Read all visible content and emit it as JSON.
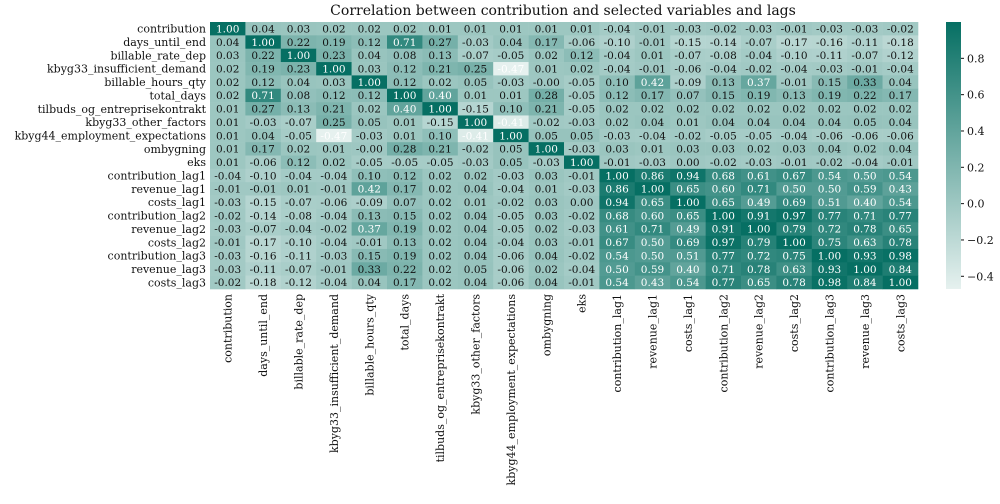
{
  "chart_data": {
    "type": "heatmap",
    "title": "Correlation between contribution and selected variables and lags",
    "rows": [
      "contribution",
      "days_until_end",
      "billable_rate_dep",
      "kbyg33_insufficient_demand",
      "billable_hours_qty",
      "total_days",
      "tilbuds_og_entreprisekontrakt",
      "kbyg33_other_factors",
      "kbyg44_employment_expectations",
      "ombygning",
      "eks",
      "contribution_lag1",
      "revenue_lag1",
      "costs_lag1",
      "contribution_lag2",
      "revenue_lag2",
      "costs_lag2",
      "contribution_lag3",
      "revenue_lag3",
      "costs_lag3"
    ],
    "columns": [
      "contribution",
      "days_until_end",
      "billable_rate_dep",
      "kbyg33_insufficient_demand",
      "billable_hours_qty",
      "total_days",
      "tilbuds_og_entreprisekontrakt",
      "kbyg33_other_factors",
      "kbyg44_employment_expectations",
      "ombygning",
      "eks",
      "contribution_lag1",
      "revenue_lag1",
      "costs_lag1",
      "contribution_lag2",
      "revenue_lag2",
      "costs_lag2",
      "contribution_lag3",
      "revenue_lag3",
      "costs_lag3"
    ],
    "values": [
      [
        "1.00",
        "0.04",
        "0.03",
        "0.02",
        "0.02",
        "0.02",
        "0.01",
        "0.01",
        "0.01",
        "0.01",
        "0.01",
        "-0.04",
        "-0.01",
        "-0.03",
        "-0.02",
        "-0.03",
        "-0.01",
        "-0.03",
        "-0.03",
        "-0.02"
      ],
      [
        "0.04",
        "1.00",
        "0.22",
        "0.19",
        "0.12",
        "0.71",
        "0.27",
        "-0.03",
        "0.04",
        "0.17",
        "-0.06",
        "-0.10",
        "-0.01",
        "-0.15",
        "-0.14",
        "-0.07",
        "-0.17",
        "-0.16",
        "-0.11",
        "-0.18"
      ],
      [
        "0.03",
        "0.22",
        "1.00",
        "0.23",
        "0.04",
        "0.08",
        "0.13",
        "-0.07",
        "-0.05",
        "0.02",
        "0.12",
        "-0.04",
        "0.01",
        "-0.07",
        "-0.08",
        "-0.04",
        "-0.10",
        "-0.11",
        "-0.07",
        "-0.12"
      ],
      [
        "0.02",
        "0.19",
        "0.23",
        "1.00",
        "0.03",
        "0.12",
        "0.21",
        "0.25",
        "-0.47",
        "0.01",
        "0.02",
        "-0.04",
        "-0.01",
        "-0.06",
        "-0.04",
        "-0.02",
        "-0.04",
        "-0.03",
        "-0.01",
        "-0.04"
      ],
      [
        "0.02",
        "0.12",
        "0.04",
        "0.03",
        "1.00",
        "0.12",
        "0.02",
        "0.05",
        "-0.03",
        "-0.00",
        "-0.05",
        "0.10",
        "0.42",
        "-0.09",
        "0.13",
        "0.37",
        "-0.01",
        "0.15",
        "0.33",
        "0.04"
      ],
      [
        "0.02",
        "0.71",
        "0.08",
        "0.12",
        "0.12",
        "1.00",
        "0.40",
        "0.01",
        "0.01",
        "0.28",
        "-0.05",
        "0.12",
        "0.17",
        "0.07",
        "0.15",
        "0.19",
        "0.13",
        "0.19",
        "0.22",
        "0.17"
      ],
      [
        "0.01",
        "0.27",
        "0.13",
        "0.21",
        "0.02",
        "0.40",
        "1.00",
        "-0.15",
        "0.10",
        "0.21",
        "-0.05",
        "0.02",
        "0.02",
        "0.02",
        "0.02",
        "0.02",
        "0.02",
        "0.02",
        "0.02",
        "0.02"
      ],
      [
        "0.01",
        "-0.03",
        "-0.07",
        "0.25",
        "0.05",
        "0.01",
        "-0.15",
        "1.00",
        "-0.41",
        "-0.02",
        "-0.03",
        "0.02",
        "0.04",
        "0.01",
        "0.04",
        "0.04",
        "0.04",
        "0.04",
        "0.05",
        "0.04"
      ],
      [
        "0.01",
        "0.04",
        "-0.05",
        "-0.47",
        "-0.03",
        "0.01",
        "0.10",
        "-0.41",
        "1.00",
        "0.05",
        "0.05",
        "-0.03",
        "-0.04",
        "-0.02",
        "-0.05",
        "-0.05",
        "-0.04",
        "-0.06",
        "-0.06",
        "-0.06"
      ],
      [
        "0.01",
        "0.17",
        "0.02",
        "0.01",
        "-0.00",
        "0.28",
        "0.21",
        "-0.02",
        "0.05",
        "1.00",
        "-0.03",
        "0.03",
        "0.01",
        "0.03",
        "0.03",
        "0.02",
        "0.03",
        "0.04",
        "0.02",
        "0.04"
      ],
      [
        "0.01",
        "-0.06",
        "0.12",
        "0.02",
        "-0.05",
        "-0.05",
        "-0.05",
        "-0.03",
        "0.05",
        "-0.03",
        "1.00",
        "-0.01",
        "-0.03",
        "0.00",
        "-0.02",
        "-0.03",
        "-0.01",
        "-0.02",
        "-0.04",
        "-0.01"
      ],
      [
        "-0.04",
        "-0.10",
        "-0.04",
        "-0.04",
        "0.10",
        "0.12",
        "0.02",
        "0.02",
        "-0.03",
        "0.03",
        "-0.01",
        "1.00",
        "0.86",
        "0.94",
        "0.68",
        "0.61",
        "0.67",
        "0.54",
        "0.50",
        "0.54"
      ],
      [
        "-0.01",
        "-0.01",
        "0.01",
        "-0.01",
        "0.42",
        "0.17",
        "0.02",
        "0.04",
        "-0.04",
        "0.01",
        "-0.03",
        "0.86",
        "1.00",
        "0.65",
        "0.60",
        "0.71",
        "0.50",
        "0.50",
        "0.59",
        "0.43"
      ],
      [
        "-0.03",
        "-0.15",
        "-0.07",
        "-0.06",
        "-0.09",
        "0.07",
        "0.02",
        "0.01",
        "-0.02",
        "0.03",
        "0.00",
        "0.94",
        "0.65",
        "1.00",
        "0.65",
        "0.49",
        "0.69",
        "0.51",
        "0.40",
        "0.54"
      ],
      [
        "-0.02",
        "-0.14",
        "-0.08",
        "-0.04",
        "0.13",
        "0.15",
        "0.02",
        "0.04",
        "-0.05",
        "0.03",
        "-0.02",
        "0.68",
        "0.60",
        "0.65",
        "1.00",
        "0.91",
        "0.97",
        "0.77",
        "0.71",
        "0.77"
      ],
      [
        "-0.03",
        "-0.07",
        "-0.04",
        "-0.02",
        "0.37",
        "0.19",
        "0.02",
        "0.04",
        "-0.05",
        "0.02",
        "-0.03",
        "0.61",
        "0.71",
        "0.49",
        "0.91",
        "1.00",
        "0.79",
        "0.72",
        "0.78",
        "0.65"
      ],
      [
        "-0.01",
        "-0.17",
        "-0.10",
        "-0.04",
        "-0.01",
        "0.13",
        "0.02",
        "0.04",
        "-0.04",
        "0.03",
        "-0.01",
        "0.67",
        "0.50",
        "0.69",
        "0.97",
        "0.79",
        "1.00",
        "0.75",
        "0.63",
        "0.78"
      ],
      [
        "-0.03",
        "-0.16",
        "-0.11",
        "-0.03",
        "0.15",
        "0.19",
        "0.02",
        "0.04",
        "-0.06",
        "0.04",
        "-0.02",
        "0.54",
        "0.50",
        "0.51",
        "0.77",
        "0.72",
        "0.75",
        "1.00",
        "0.93",
        "0.98"
      ],
      [
        "-0.03",
        "-0.11",
        "-0.07",
        "-0.01",
        "0.33",
        "0.22",
        "0.02",
        "0.05",
        "-0.06",
        "0.02",
        "-0.04",
        "0.50",
        "0.59",
        "0.40",
        "0.71",
        "0.78",
        "0.63",
        "0.93",
        "1.00",
        "0.84"
      ],
      [
        "-0.02",
        "-0.18",
        "-0.12",
        "-0.04",
        "0.04",
        "0.17",
        "0.02",
        "0.04",
        "-0.06",
        "0.04",
        "-0.01",
        "0.54",
        "0.43",
        "0.54",
        "0.77",
        "0.65",
        "0.78",
        "0.98",
        "0.84",
        "1.00"
      ]
    ],
    "colorbar": {
      "ticks": [
        "0.8",
        "0.6",
        "0.4",
        "0.2",
        "0.0",
        "−0.2",
        "−0.4"
      ],
      "range": [
        -0.47,
        1.0
      ],
      "color_low": "#e6f1ef",
      "color_high": "#066f63"
    }
  }
}
